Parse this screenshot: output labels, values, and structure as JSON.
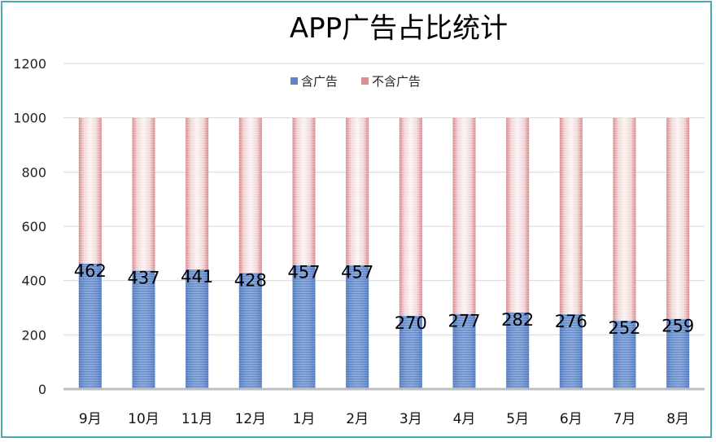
{
  "chart_data": {
    "type": "bar",
    "stacked": true,
    "title": "APP广告占比统计",
    "categories": [
      "9月",
      "10月",
      "11月",
      "12月",
      "1月",
      "2月",
      "3月",
      "4月",
      "5月",
      "6月",
      "7月",
      "8月"
    ],
    "series": [
      {
        "name": "含广告",
        "values": [
          462,
          437,
          441,
          428,
          457,
          457,
          270,
          277,
          282,
          276,
          252,
          259
        ],
        "color": "#5b86c9"
      },
      {
        "name": "不含广告",
        "values": [
          538,
          563,
          559,
          572,
          543,
          543,
          730,
          723,
          718,
          724,
          748,
          741
        ],
        "color": "#d98f93"
      }
    ],
    "data_labels": [
      462,
      437,
      441,
      428,
      457,
      457,
      270,
      277,
      282,
      276,
      252,
      259
    ],
    "ylim": [
      0,
      1200
    ],
    "yticks": [
      0,
      200,
      400,
      600,
      800,
      1000,
      1200
    ],
    "grid": true,
    "legend": "top"
  }
}
